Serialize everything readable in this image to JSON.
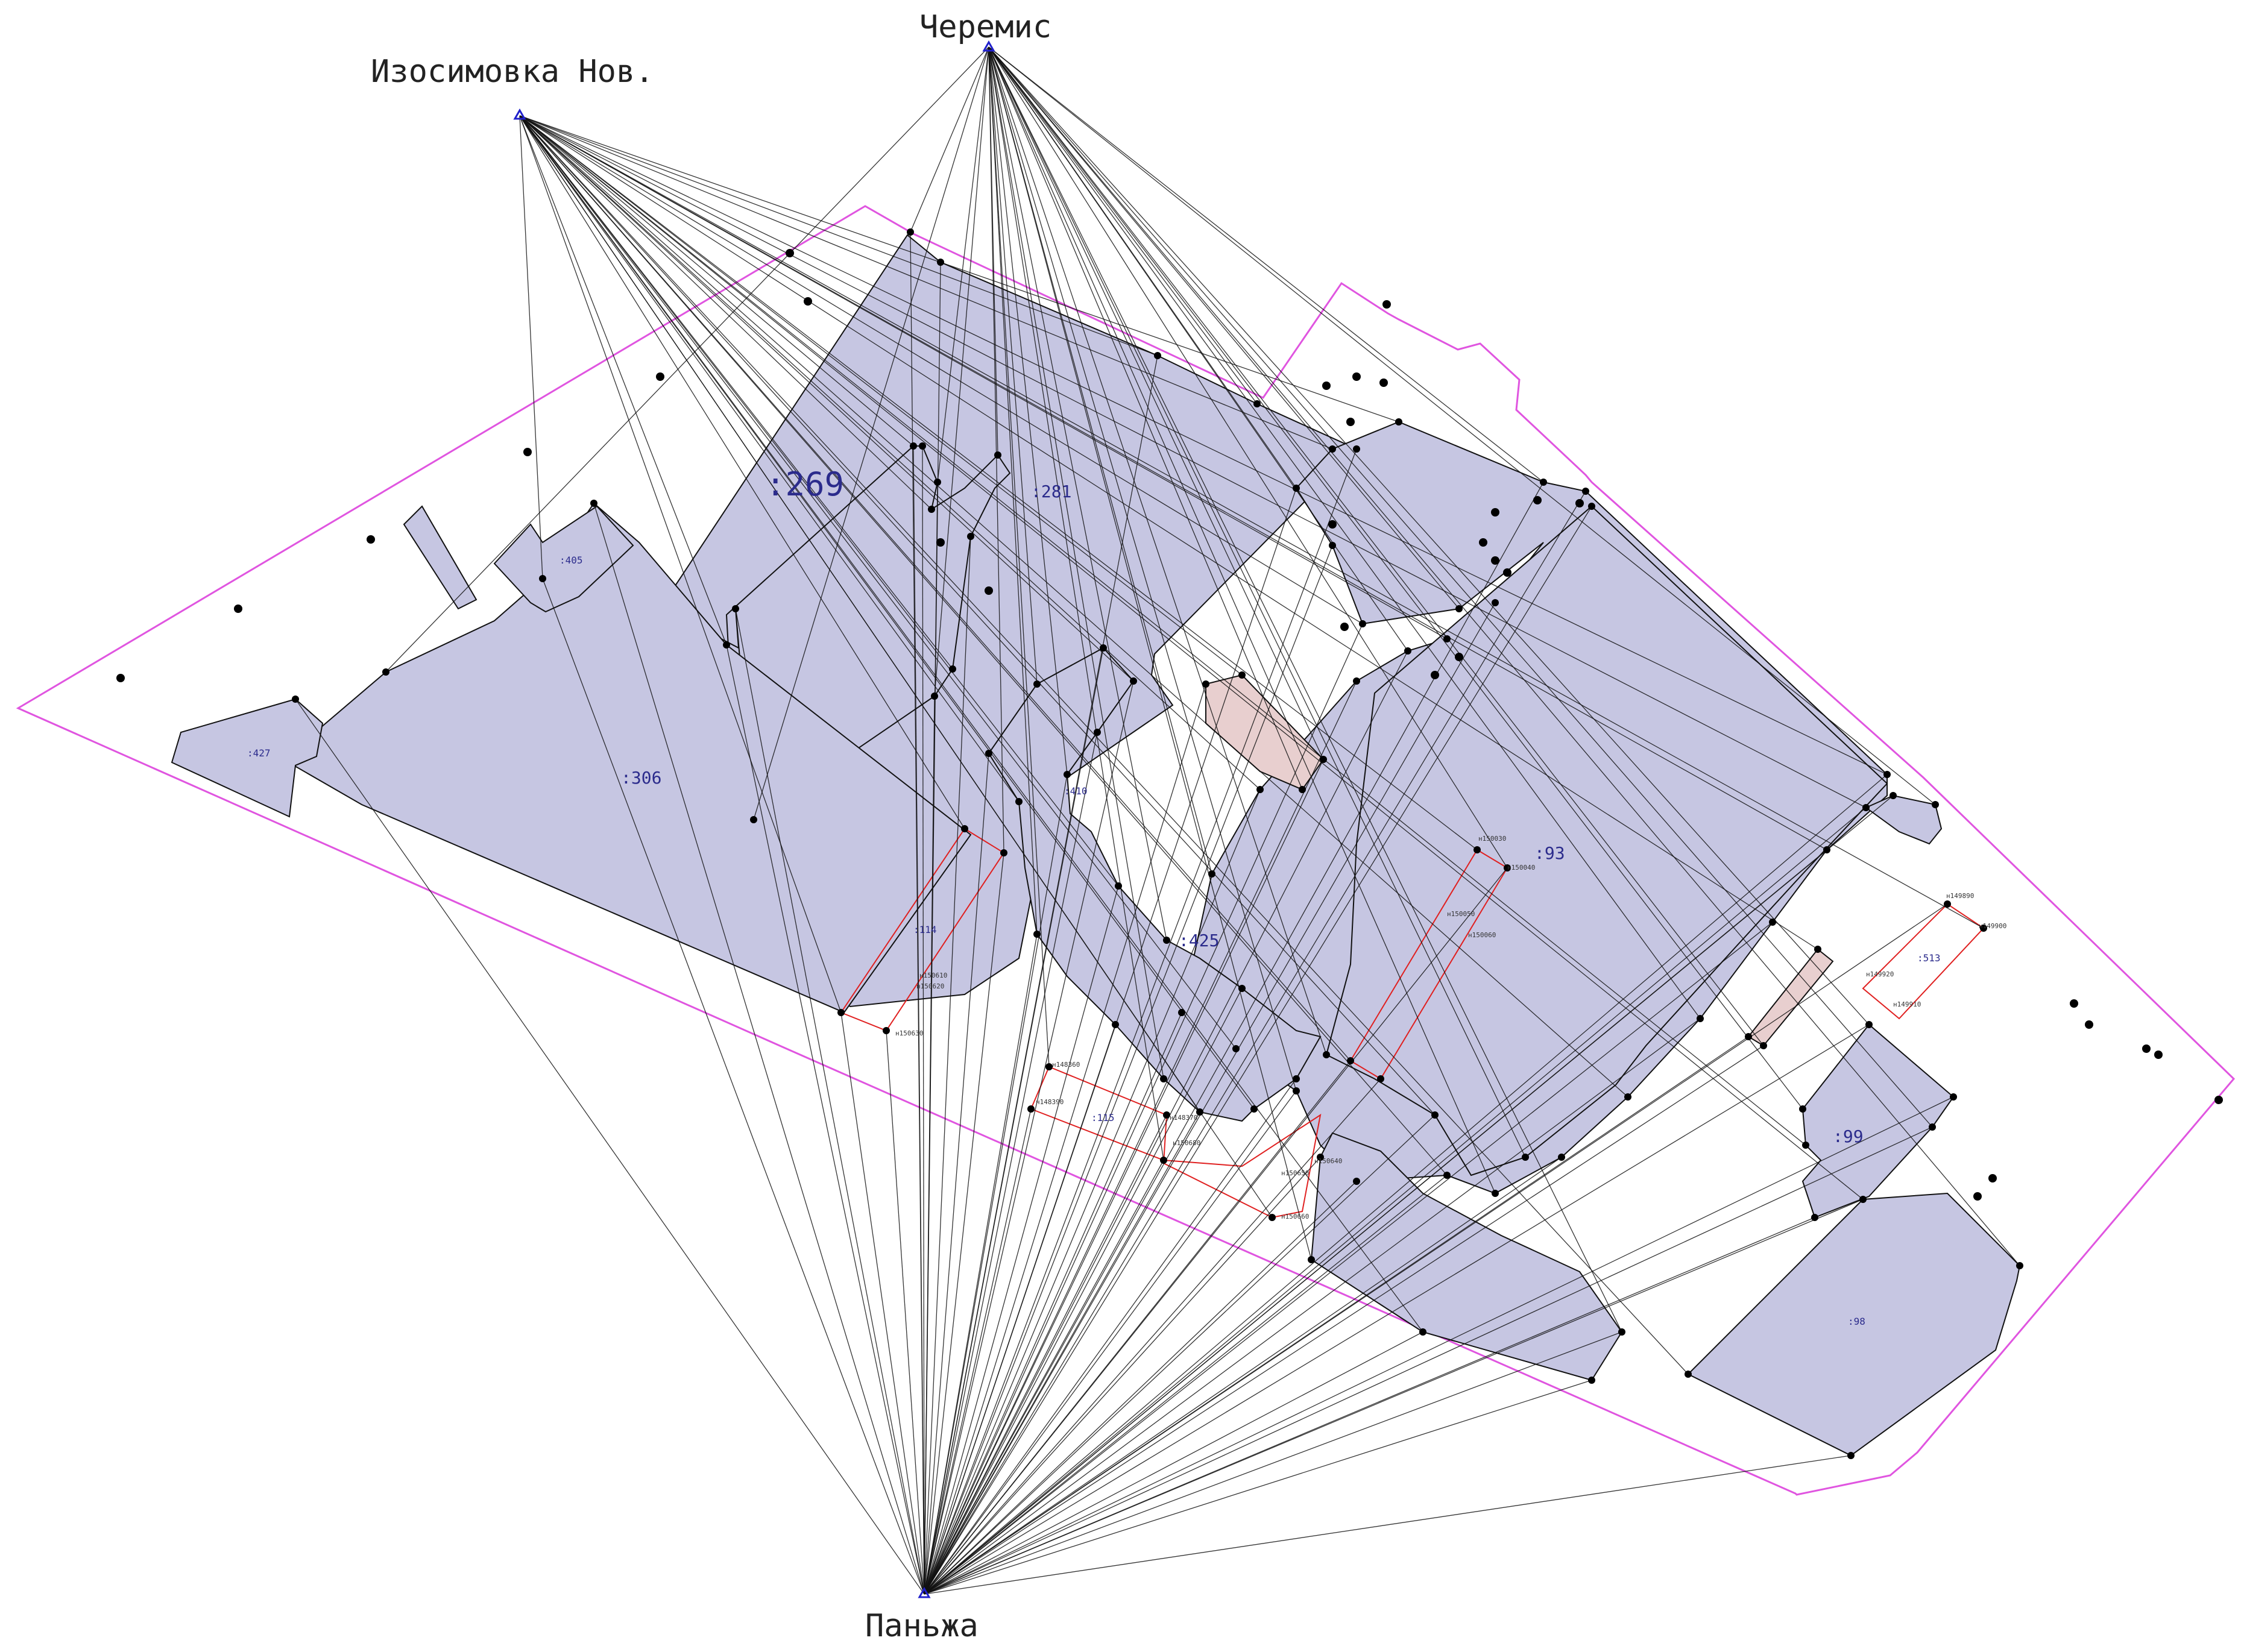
{
  "stations": [
    {
      "id": "cheremis",
      "label": "Черемис"
    },
    {
      "id": "izosimovka",
      "label": "Изосимовка Нов."
    },
    {
      "id": "panzha",
      "label": "Паньжа"
    }
  ],
  "parcels": [
    {
      "id": "p269",
      "label": ":269"
    },
    {
      "id": "p281",
      "label": ":281"
    },
    {
      "id": "p306",
      "label": ":306"
    },
    {
      "id": "p93",
      "label": ":93"
    },
    {
      "id": "p425",
      "label": ":425"
    },
    {
      "id": "p99",
      "label": ":99"
    },
    {
      "id": "p98",
      "label": ":98"
    },
    {
      "id": "p115",
      "label": ":115"
    },
    {
      "id": "p114",
      "label": ":114"
    },
    {
      "id": "p427",
      "label": ":427"
    },
    {
      "id": "p410",
      "label": ":410"
    },
    {
      "id": "p405",
      "label": ":405"
    },
    {
      "id": "p513",
      "label": ":513"
    }
  ],
  "point_labels": [
    {
      "id": "n150030",
      "label": "н150030"
    },
    {
      "id": "n150040",
      "label": "н150040"
    },
    {
      "id": "n150050",
      "label": "н150050"
    },
    {
      "id": "n150060",
      "label": "н150060"
    },
    {
      "id": "n149890",
      "label": "н149890"
    },
    {
      "id": "n149900",
      "label": "н149900"
    },
    {
      "id": "n149910",
      "label": "н149910"
    },
    {
      "id": "n149920",
      "label": "н149920"
    },
    {
      "id": "n148360",
      "label": "н148360"
    },
    {
      "id": "n148390",
      "label": "н148390"
    },
    {
      "id": "n148370",
      "label": "н148370"
    },
    {
      "id": "n150610",
      "label": "н150610"
    },
    {
      "id": "n150620",
      "label": "н150620"
    },
    {
      "id": "n150630",
      "label": "н150630"
    },
    {
      "id": "n150680",
      "label": "н150680"
    },
    {
      "id": "n150640",
      "label": "н150640"
    },
    {
      "id": "n150650",
      "label": "н150650"
    },
    {
      "id": "n150660",
      "label": "н150660"
    }
  ],
  "colors": {
    "parcel_fill": "#c6c6e2",
    "boundary": "#e055e0",
    "red_outline": "#e02020",
    "station": "#2020cc",
    "brown_fill": "#e8cfcf"
  }
}
